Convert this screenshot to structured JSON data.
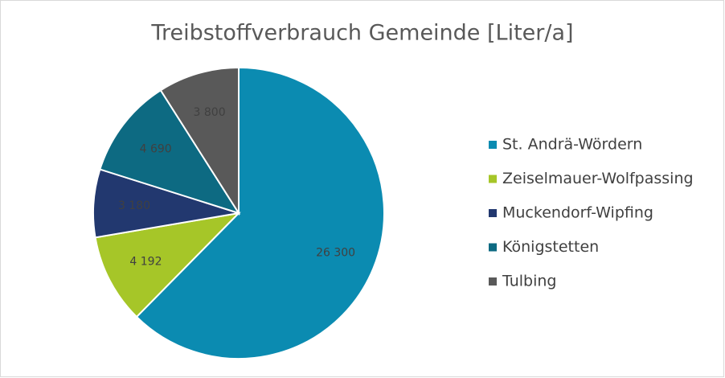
{
  "chart_data": {
    "type": "pie",
    "title": "Treibstoffverbrauch Gemeinde [Liter/a]",
    "categories": [
      "St. Andrä-Wördern",
      "Zeiselmauer-Wolfpassing",
      "Muckendorf-Wipfing",
      "Königstetten",
      "Tulbing"
    ],
    "values": [
      26300,
      4192,
      3180,
      4690,
      3800
    ],
    "value_labels": [
      "26 300",
      "4 192",
      "3 180",
      "4 690",
      "3 800"
    ],
    "colors": [
      "#0b8bb1",
      "#a6c628",
      "#22386f",
      "#0d6a82",
      "#595959"
    ],
    "legend": "right"
  }
}
